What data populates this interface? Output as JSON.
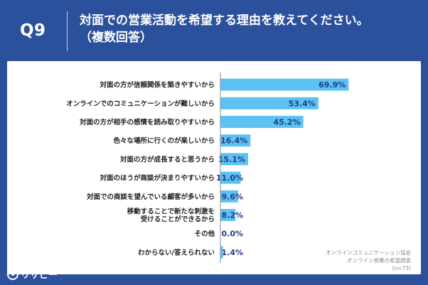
{
  "header": {
    "question": "Q9",
    "title_line1": "対面での営業活動を希望する理由を教えてください。",
    "title_line2": "（複数回答）"
  },
  "chart_data": {
    "type": "bar",
    "orientation": "horizontal",
    "categories": [
      "対面の方が信頼関係を築きやすいから",
      "オンラインでのコミュニケーションが難しいから",
      "対面の方が相手の感情を読み取りやすいから",
      "色々な場所に行くのが楽しいから",
      "対面の方が成長すると思うから",
      "対面のほうが商談が決まりやすいから",
      "対面での商談を望んでいる顧客が多いから",
      "移動することで新たな刺激を\n受けることができるから",
      "その他",
      "わからない/答えられない"
    ],
    "values": [
      69.9,
      53.4,
      45.2,
      16.4,
      15.1,
      11.0,
      9.6,
      8.2,
      0.0,
      1.4
    ],
    "value_labels": [
      "69.9%",
      "53.4%",
      "45.2%",
      "16.4%",
      "15.1%",
      "11.0%",
      "9.6%",
      "8.2%",
      "0.0%",
      "1.4%"
    ],
    "xlim": [
      0,
      100
    ],
    "bar_color": "#5bc2f2",
    "label_color": "#1e3f86"
  },
  "source": {
    "line1": "オンラインコミュニケーション協会",
    "line2": "オンライン営業の希望調査",
    "line3": "(n=73)"
  },
  "logo": {
    "text": "リサピー"
  }
}
